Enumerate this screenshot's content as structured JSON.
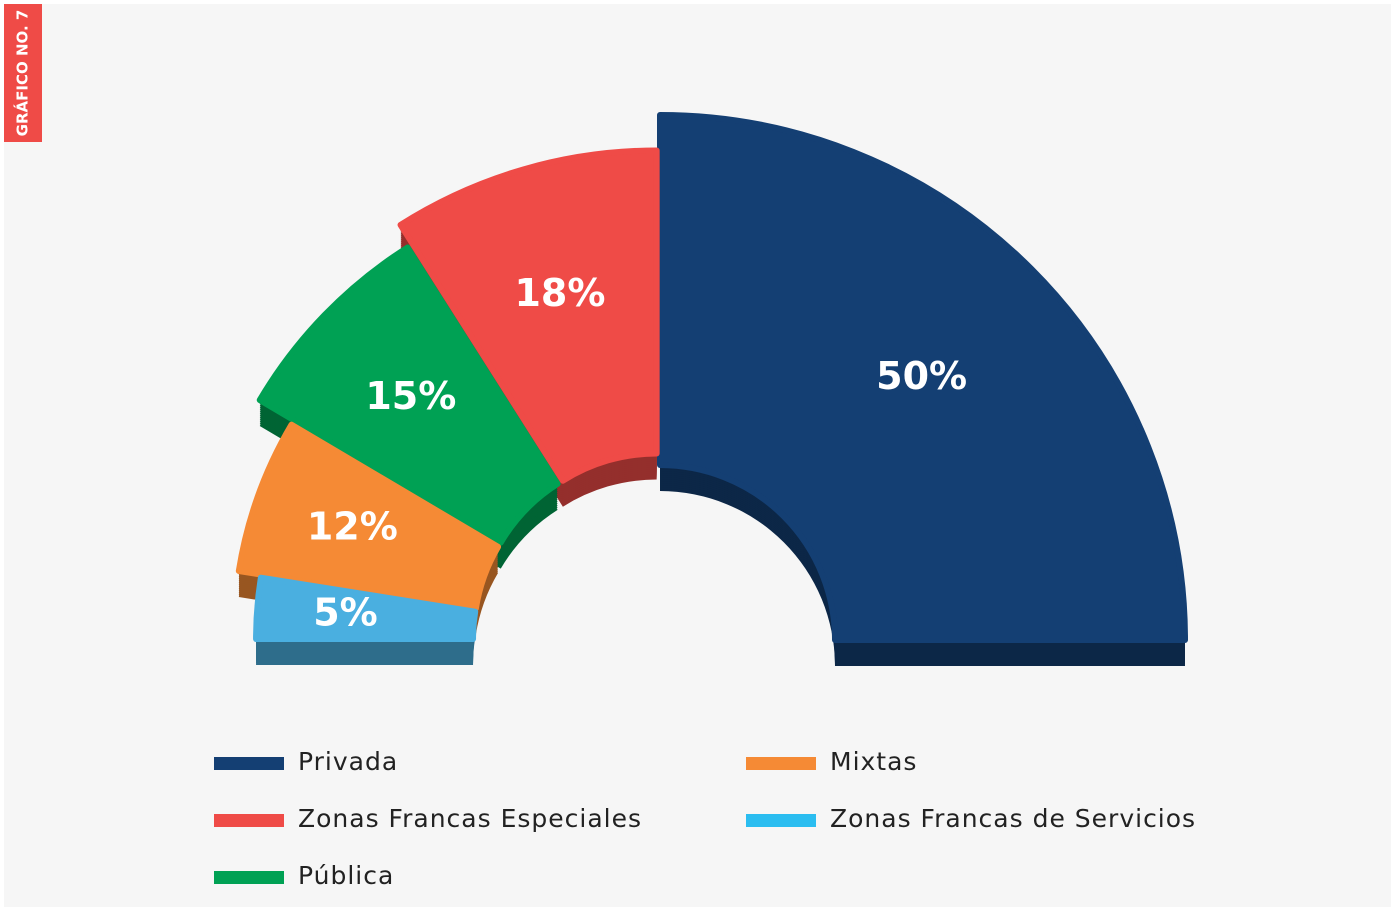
{
  "side_label": "GRÁFICO NO. 7",
  "chart_data": {
    "type": "pie",
    "categories": [
      "Privada",
      "Zonas Francas Especiales",
      "Pública",
      "Mixtas",
      "Zonas Francas de Servicios"
    ],
    "values": [
      50,
      18,
      15,
      12,
      5
    ],
    "value_labels": [
      "50%",
      "18%",
      "15%",
      "12%",
      "5%"
    ],
    "colors": [
      "#143f73",
      "#ef4b47",
      "#00a154",
      "#f58a35",
      "#4aafe0"
    ],
    "legend_colors": [
      "#143f73",
      "#ef4b47",
      "#00a154",
      "#f58a35",
      "#2bbdf0"
    ]
  }
}
